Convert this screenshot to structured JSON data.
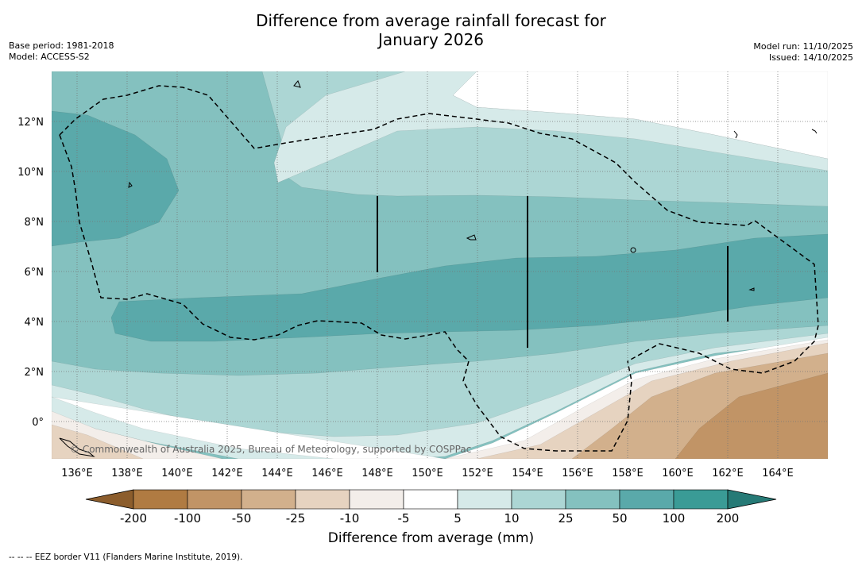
{
  "header": {
    "title_line1": "Difference from average rainfall forecast for",
    "title_line2": "January 2026",
    "base_period": "Base period: 1981-2018",
    "model": "Model: ACCESS-S2",
    "model_run": "Model run: 11/10/2025",
    "issued": "Issued: 14/10/2025"
  },
  "map": {
    "copyright": "© Commonwealth of Australia 2025, Bureau of Meteorology, supported by COSPPac",
    "lat_labels": [
      "12°N",
      "10°N",
      "8°N",
      "6°N",
      "4°N",
      "2°N",
      "0°"
    ],
    "lon_labels": [
      "136°E",
      "138°E",
      "140°E",
      "142°E",
      "144°E",
      "146°E",
      "148°E",
      "150°E",
      "152°E",
      "154°E",
      "156°E",
      "158°E",
      "160°E",
      "162°E",
      "164°E"
    ],
    "colors": {
      "dry200": "#8c5d2c",
      "dry100": "#b07b42",
      "dry50": "#c19466",
      "dry25": "#d2b08c",
      "dry10": "#e6d3c0",
      "dry5": "#f3eeea",
      "neutral": "#ffffff",
      "wet5": "#d6eae9",
      "wet10": "#acd6d4",
      "wet25": "#84c1bf",
      "wet50": "#5aa9aa",
      "wet100": "#3a9b96",
      "wet200": "#267a76"
    }
  },
  "colorbar": {
    "labels": [
      "-200",
      "-100",
      "-50",
      "-25",
      "-10",
      "-5",
      "5",
      "10",
      "25",
      "50",
      "100",
      "200"
    ],
    "title": "Difference from average (mm)"
  },
  "footnote": "--  --  -- EEZ border V11 (Flanders Marine Institute, 2019)."
}
